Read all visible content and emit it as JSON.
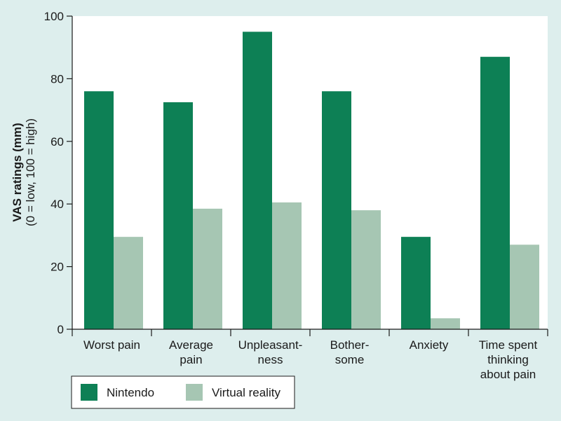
{
  "chart_data": {
    "type": "bar",
    "categories": [
      [
        "Worst pain"
      ],
      [
        "Average",
        "pain"
      ],
      [
        "Unpleasant-",
        "ness"
      ],
      [
        "Bother-",
        "some"
      ],
      [
        "Anxiety"
      ],
      [
        "Time spent",
        "thinking",
        "about pain"
      ]
    ],
    "series": [
      {
        "name": "Nintendo",
        "color": "#0d8055",
        "values": [
          76,
          72.5,
          95,
          76,
          29.5,
          87
        ]
      },
      {
        "name": "Virtual reality",
        "color": "#a6c6b3",
        "values": [
          29.5,
          38.5,
          40.5,
          38,
          3.5,
          27
        ]
      }
    ],
    "ylabel": "VAS ratings (mm)",
    "ylabel_sub": "(0 = low, 100 = high)",
    "ylim": [
      0,
      100
    ],
    "yticks": [
      0,
      20,
      40,
      60,
      80,
      100
    ],
    "legend_position": "bottom-left",
    "grid": false
  }
}
